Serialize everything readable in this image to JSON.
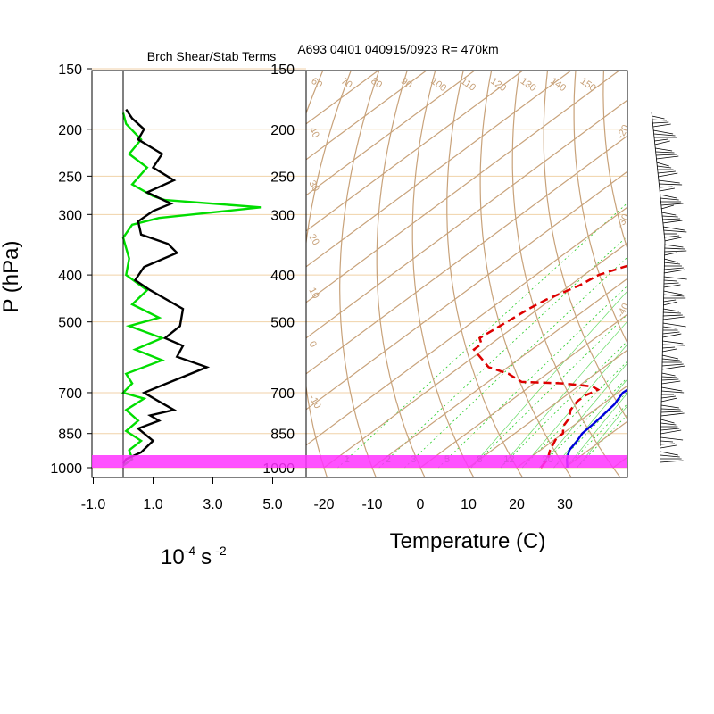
{
  "titles": {
    "left": "Brch Shear/Stab Terms",
    "right": "A693 04I01 040915/0923 R= 470km"
  },
  "axes": {
    "y_label": "P (hPa)",
    "x_left_label_base": "10",
    "x_left_label_exp": "-4",
    "x_left_label_unit": "s",
    "x_left_label_unit_exp": "-2",
    "x_right_label": "Temperature (C)",
    "pressure_ticks": [
      "150",
      "200",
      "250",
      "300",
      "400",
      "500",
      "700",
      "850",
      "1000"
    ],
    "left_x_ticks": [
      "-1.0",
      "1.0",
      "3.0",
      "5.0"
    ],
    "right_x_ticks": [
      "-20",
      "-10",
      "0",
      "10",
      "20",
      "30"
    ]
  },
  "colors": {
    "temperature": "#0000dd",
    "dewpoint": "#dd0000",
    "shear_term": "#000000",
    "stability_term": "#00dd00",
    "background_lines": "#c8a27a",
    "mixing_ratio": "#22cc22",
    "surface_band": "#ff33ff",
    "isobar": "#f0d2a8"
  },
  "mixing_ratio_top_labels": [
    "12",
    "16",
    "20",
    "24",
    "28",
    "32"
  ],
  "mixing_ratio_bottom_labels": [
    "1",
    "2",
    "3",
    "5",
    "8",
    "12",
    "20"
  ],
  "dry_adiabat_labels": [
    "60",
    "70",
    "80",
    "90",
    "100",
    "110",
    "120",
    "130",
    "140",
    "150",
    "40",
    "30",
    "20",
    "10",
    "0",
    "-10",
    "-20",
    "-30",
    "-40"
  ],
  "chart_data": [
    {
      "type": "line",
      "title": "Brch Shear/Stab Terms",
      "xlabel": "10^-4 s^-2",
      "ylabel": "P (hPa)",
      "xlim": [
        -1.0,
        5.0
      ],
      "ylim": [
        1000,
        150
      ],
      "y_scale": "log",
      "series": [
        {
          "values_xy": [
            [
              0.0,
              980
            ],
            [
              0.1,
              960
            ],
            [
              0.6,
              930
            ],
            [
              1.0,
              880
            ],
            [
              0.5,
              830
            ],
            [
              1.2,
              800
            ],
            [
              0.9,
              780
            ],
            [
              1.7,
              760
            ],
            [
              1.2,
              730
            ],
            [
              0.7,
              700
            ],
            [
              1.2,
              680
            ],
            [
              2.8,
              620
            ],
            [
              1.8,
              590
            ],
            [
              2.0,
              560
            ],
            [
              1.4,
              540
            ],
            [
              1.9,
              510
            ],
            [
              2.0,
              470
            ],
            [
              0.9,
              430
            ],
            [
              0.4,
              410
            ],
            [
              0.7,
              385
            ],
            [
              1.8,
              360
            ],
            [
              1.5,
              345
            ],
            [
              0.6,
              330
            ],
            [
              0.5,
              310
            ],
            [
              1.0,
              295
            ],
            [
              1.6,
              285
            ],
            [
              0.8,
              270
            ],
            [
              1.7,
              255
            ],
            [
              1.0,
              240
            ],
            [
              1.3,
              225
            ],
            [
              0.5,
              210
            ],
            [
              0.7,
              200
            ],
            [
              0.3,
              190
            ],
            [
              0.1,
              182
            ]
          ]
        },
        {
          "values_xy": [
            [
              0.0,
              990
            ],
            [
              0.3,
              960
            ],
            [
              0.2,
              920
            ],
            [
              0.6,
              880
            ],
            [
              0.1,
              840
            ],
            [
              0.5,
              800
            ],
            [
              0.1,
              760
            ],
            [
              0.7,
              720
            ],
            [
              0.0,
              700
            ],
            [
              0.3,
              670
            ],
            [
              0.1,
              640
            ],
            [
              1.3,
              600
            ],
            [
              0.4,
              570
            ],
            [
              1.3,
              540
            ],
            [
              0.2,
              510
            ],
            [
              1.2,
              490
            ],
            [
              0.3,
              460
            ],
            [
              0.8,
              430
            ],
            [
              0.1,
              400
            ],
            [
              0.2,
              370
            ],
            [
              0.0,
              335
            ],
            [
              0.3,
              315
            ],
            [
              1.2,
              305
            ],
            [
              4.6,
              290
            ],
            [
              1.4,
              280
            ],
            [
              1.0,
              275
            ],
            [
              0.3,
              260
            ],
            [
              0.8,
              240
            ],
            [
              0.2,
              225
            ],
            [
              0.6,
              210
            ],
            [
              0.1,
              195
            ],
            [
              0.0,
              185
            ]
          ]
        }
      ]
    },
    {
      "type": "line",
      "title": "A693 04I01 040915/0923 R= 470km",
      "xlabel": "Temperature (C)",
      "ylabel": "P (hPa)",
      "xlim": [
        -23,
        43
      ],
      "ylim": [
        1000,
        150
      ],
      "y_scale": "log",
      "series": [
        {
          "values_xy": [
            [
              30.5,
              1000
            ],
            [
              28,
              960
            ],
            [
              26,
              920
            ],
            [
              25,
              880
            ],
            [
              24,
              850
            ],
            [
              23.5,
              800
            ],
            [
              22.5,
              740
            ],
            [
              21,
              700
            ],
            [
              21.5,
              660
            ],
            [
              22,
              620
            ],
            [
              22,
              560
            ],
            [
              21.5,
              500
            ],
            [
              20.5,
              440
            ],
            [
              17,
              370
            ],
            [
              14,
              330
            ],
            [
              11,
              285
            ],
            [
              9,
              255
            ],
            [
              8,
              235
            ],
            [
              6.5,
              215
            ],
            [
              4,
              195
            ],
            [
              1,
              180
            ],
            [
              -1,
              170
            ]
          ]
        },
        {
          "values_xy": [
            [
              25,
              1000
            ],
            [
              24,
              960
            ],
            [
              22,
              920
            ],
            [
              20,
              870
            ],
            [
              20,
              850
            ],
            [
              18,
              820
            ],
            [
              17,
              790
            ],
            [
              15,
              760
            ],
            [
              14,
              730
            ],
            [
              14,
              710
            ],
            [
              15,
              690
            ],
            [
              13,
              680
            ],
            [
              6,
              670
            ],
            [
              -3,
              665
            ],
            [
              -6,
              650
            ],
            [
              -8,
              640
            ],
            [
              -11,
              630
            ],
            [
              -14,
              620
            ],
            [
              -22,
              570
            ],
            [
              -22,
              555
            ],
            [
              -24,
              540
            ],
            [
              -22,
              470
            ],
            [
              -21,
              450
            ],
            [
              -18,
              420
            ],
            [
              -17,
              400
            ],
            [
              -13,
              380
            ],
            [
              -7,
              365
            ],
            [
              2,
              350
            ],
            [
              -2,
              345
            ],
            [
              -4,
              335
            ],
            [
              -4,
              320
            ],
            [
              -5,
              305
            ],
            [
              -4,
              295
            ],
            [
              -2,
              285
            ],
            [
              3,
              270
            ],
            [
              2,
              260
            ],
            [
              -3,
              250
            ],
            [
              -5,
              240
            ],
            [
              -7,
              225
            ],
            [
              -8,
              210
            ],
            [
              -10,
              200
            ]
          ]
        }
      ]
    }
  ]
}
